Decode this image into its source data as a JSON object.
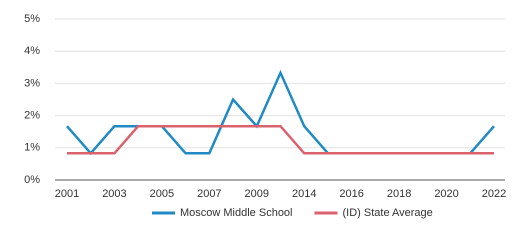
{
  "chart_data": {
    "type": "line",
    "categories": [
      "2001",
      null,
      "2003",
      null,
      "2005",
      null,
      "2007",
      null,
      "2009",
      null,
      "2014",
      null,
      "2016",
      null,
      "2018",
      null,
      "2020",
      null,
      "2022"
    ],
    "series": [
      {
        "name": "Moscow Middle School",
        "color": "#1f8ac4",
        "values": [
          1.67,
          0.83,
          1.67,
          1.67,
          1.67,
          0.83,
          0.83,
          2.5,
          1.67,
          3.33,
          1.67,
          0.83,
          0.83,
          0.83,
          0.83,
          0.83,
          0.83,
          0.83,
          1.67
        ]
      },
      {
        "name": "(ID) State Average",
        "color": "#d9626d",
        "values": [
          0.83,
          0.83,
          0.83,
          1.67,
          1.67,
          1.67,
          1.67,
          1.67,
          1.67,
          1.67,
          0.83,
          0.83,
          0.83,
          0.83,
          0.83,
          0.83,
          0.83,
          0.83,
          0.83
        ]
      }
    ],
    "ylim": [
      0,
      5
    ],
    "yticks": [
      {
        "value": 0,
        "label": "0%"
      },
      {
        "value": 1,
        "label": "1%"
      },
      {
        "value": 2,
        "label": "2%"
      },
      {
        "value": 3,
        "label": "3%"
      },
      {
        "value": 4,
        "label": "4%"
      },
      {
        "value": 5,
        "label": "5%"
      }
    ],
    "grid": true
  }
}
